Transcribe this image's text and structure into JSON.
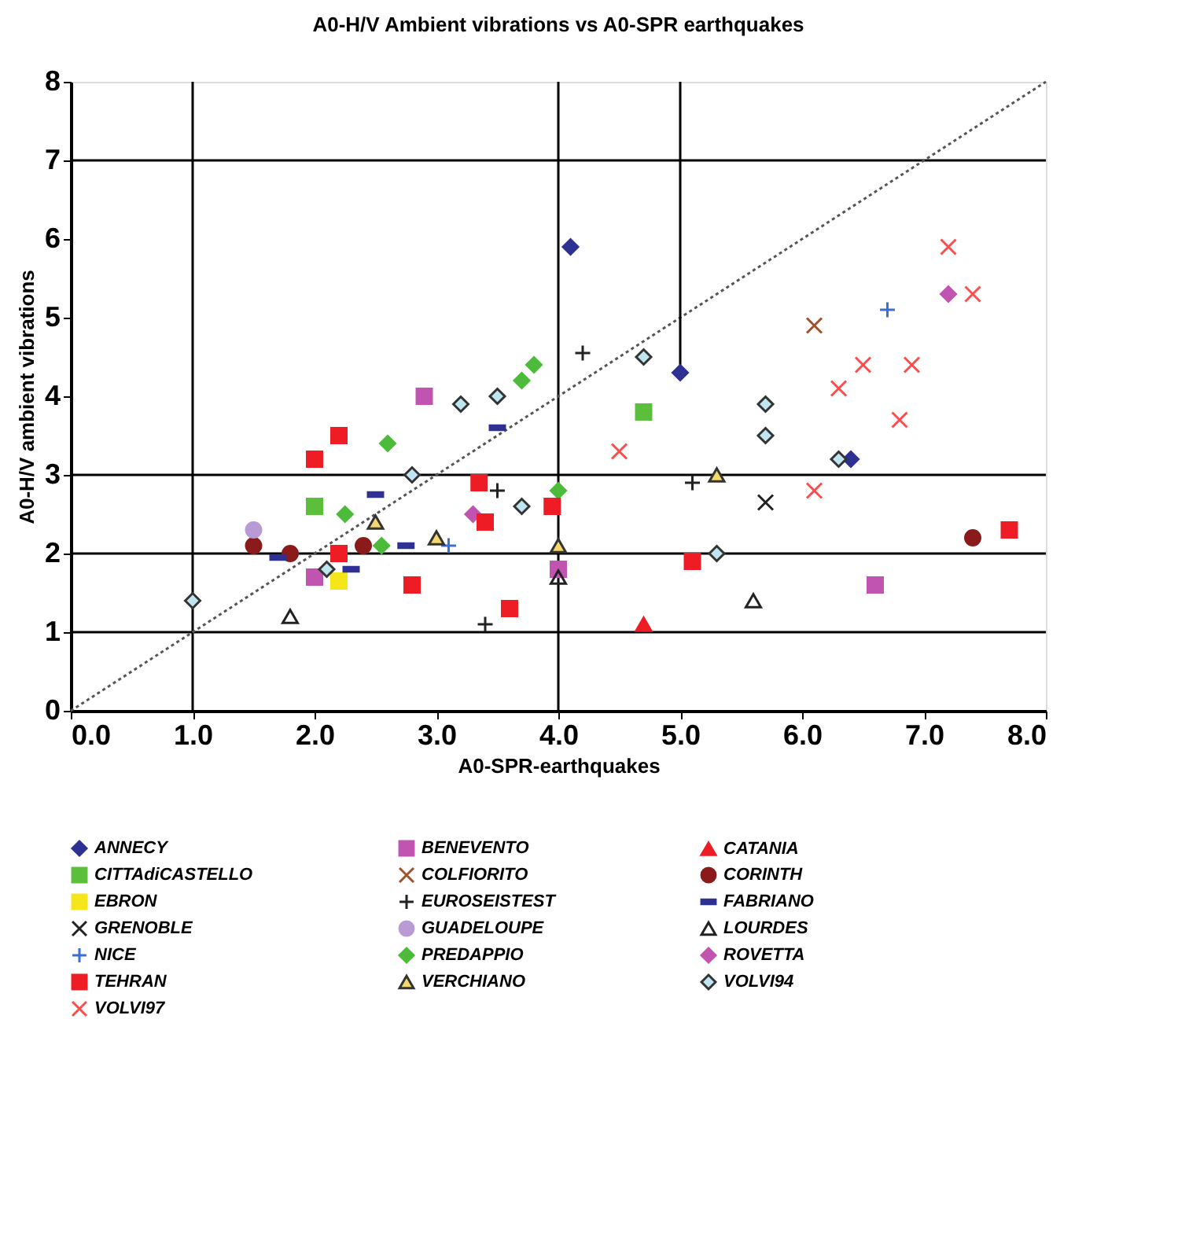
{
  "chart_data": {
    "type": "scatter",
    "title": "A0-H/V Ambient vibrations vs A0-SPR earthquakes",
    "xlabel": "A0-SPR-earthquakes",
    "ylabel": "A0-H/V ambient vibrations",
    "xlim": [
      0,
      8
    ],
    "ylim": [
      0,
      8
    ],
    "xticks": [
      {
        "value": 0,
        "label": "0.0"
      },
      {
        "value": 1,
        "label": "1.0"
      },
      {
        "value": 2,
        "label": "2.0"
      },
      {
        "value": 3,
        "label": "3.0"
      },
      {
        "value": 4,
        "label": "4.0"
      },
      {
        "value": 5,
        "label": "5.0"
      },
      {
        "value": 6,
        "label": "6.0"
      },
      {
        "value": 7,
        "label": "7.0"
      },
      {
        "value": 8,
        "label": "8.0"
      }
    ],
    "yticks": [
      0,
      1,
      2,
      3,
      4,
      5,
      6,
      7,
      8
    ],
    "grid": false,
    "legend": "bottom",
    "ref_lines": [
      {
        "axis": "x",
        "value": 1,
        "color": "#000000"
      },
      {
        "axis": "x",
        "value": 4,
        "color": "#000000"
      },
      {
        "axis": "y",
        "value": 1,
        "color": "#000000"
      },
      {
        "axis": "y",
        "value": 2,
        "color": "#000000"
      },
      {
        "axis": "y",
        "value": 3,
        "color": "#000000"
      },
      {
        "axis": "y",
        "value": 7,
        "color": "#000000"
      }
    ],
    "series": [
      {
        "type": "line",
        "color": "#555555",
        "line_style": "dotted",
        "marker": "none",
        "x": [
          0,
          8
        ],
        "values": [
          0,
          8
        ]
      },
      {
        "name": "ANNECY",
        "color": "#2e3192",
        "marker": "diamond",
        "x": [
          4.1,
          5.0,
          6.4
        ],
        "values": [
          5.9,
          4.3,
          3.2
        ],
        "errors": [
          null,
          [
            4.3,
            8
          ],
          null
        ]
      },
      {
        "name": "BENEVENTO",
        "color": "#c054b0",
        "marker": "square",
        "x": [
          2.9,
          2.0,
          4.0,
          6.6
        ],
        "values": [
          4.0,
          1.7,
          1.8,
          1.6
        ]
      },
      {
        "name": "CATANIA",
        "color": "#ee1c25",
        "marker": "triangle",
        "x": [
          4.7
        ],
        "values": [
          1.1
        ]
      },
      {
        "name": "CITTAdiCASTELLO",
        "color": "#5cbf3c",
        "marker": "square",
        "x": [
          2.0,
          4.7
        ],
        "values": [
          2.6,
          3.8
        ]
      },
      {
        "name": "COLFIORITO",
        "color": "#a0522d",
        "marker": "cross",
        "x": [
          6.1
        ],
        "values": [
          4.9
        ]
      },
      {
        "name": "CORINTH",
        "color": "#8b1a1a",
        "marker": "circle",
        "x": [
          1.5,
          1.8,
          2.4,
          7.4
        ],
        "values": [
          2.1,
          2.0,
          2.1,
          2.2
        ]
      },
      {
        "name": "EBRON",
        "color": "#f5e61a",
        "marker": "square",
        "x": [
          2.2
        ],
        "values": [
          1.65
        ]
      },
      {
        "name": "EUROSEISTEST",
        "color": "#222222",
        "marker": "plus",
        "x": [
          4.2,
          3.5,
          3.4,
          5.1
        ],
        "values": [
          4.55,
          2.8,
          1.1,
          2.9
        ]
      },
      {
        "name": "FABRIANO",
        "color": "#2e3192",
        "x": [
          2.5,
          2.75,
          3.5,
          1.7,
          2.3
        ],
        "values": [
          2.75,
          2.1,
          3.6,
          1.95,
          1.8
        ]
      },
      {
        "name": "GRENOBLE",
        "color": "#222222",
        "marker": "cross",
        "x": [
          5.7
        ],
        "values": [
          2.65
        ]
      },
      {
        "name": "GUADELOUPE",
        "color": "#b89ad4",
        "marker": "circle",
        "x": [
          1.5
        ],
        "values": [
          2.3
        ]
      },
      {
        "name": "LOURDES",
        "color": "#222222",
        "marker": "triangle",
        "x": [
          1.8,
          4.0,
          5.6
        ],
        "values": [
          1.2,
          1.7,
          1.4
        ]
      },
      {
        "name": "NICE",
        "color": "#3a6fd8",
        "marker": "plus",
        "x": [
          6.7,
          3.1
        ],
        "values": [
          5.1,
          2.1
        ]
      },
      {
        "name": "PREDAPPIO",
        "color": "#4cbb3a",
        "marker": "diamond",
        "x": [
          2.6,
          3.7,
          3.8,
          2.25,
          2.55,
          4.0
        ],
        "values": [
          3.4,
          4.2,
          4.4,
          2.5,
          2.1,
          2.8
        ]
      },
      {
        "name": "ROVETTA",
        "color": "#c054b0",
        "marker": "diamond",
        "x": [
          7.2,
          3.3
        ],
        "values": [
          5.3,
          2.5
        ]
      },
      {
        "name": "TEHRAN",
        "color": "#ee1c25",
        "marker": "square",
        "x": [
          2.2,
          2.0,
          3.35,
          3.95,
          3.4,
          2.2,
          2.8,
          3.6,
          5.1,
          7.7
        ],
        "values": [
          3.5,
          3.2,
          2.9,
          2.6,
          2.4,
          2.0,
          1.6,
          1.3,
          1.9,
          2.3
        ]
      },
      {
        "name": "VERCHIANO",
        "color": "#f5d76e",
        "marker": "triangle",
        "x": [
          2.5,
          3.0,
          4.0,
          5.3
        ],
        "values": [
          2.4,
          2.2,
          2.1,
          3.0
        ]
      },
      {
        "name": "VOLVI94",
        "color": "#bfe6f0",
        "marker": "diamond",
        "x": [
          1.0,
          2.1,
          2.8,
          3.2,
          3.5,
          3.7,
          4.7,
          5.3,
          5.7,
          5.7,
          6.3
        ],
        "values": [
          1.4,
          1.8,
          3.0,
          3.9,
          4.0,
          2.6,
          4.5,
          2.0,
          3.9,
          3.5,
          3.2
        ]
      },
      {
        "name": "VOLVI97",
        "color": "#ff4d4d",
        "marker": "cross",
        "x": [
          7.2,
          7.4,
          6.5,
          6.9,
          6.3,
          6.8,
          4.5,
          6.1
        ],
        "values": [
          5.9,
          5.3,
          4.4,
          4.4,
          4.1,
          3.7,
          3.3,
          2.8
        ]
      }
    ]
  }
}
